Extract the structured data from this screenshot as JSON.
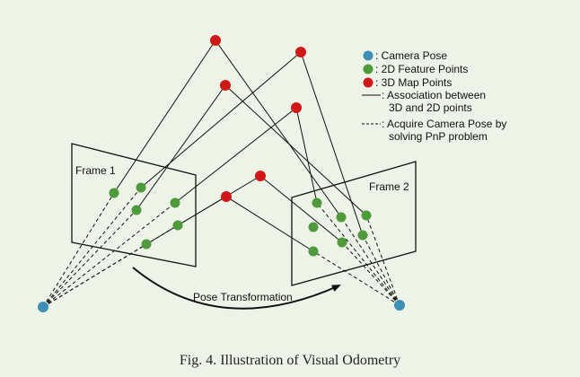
{
  "colors": {
    "camera": "#3d8fb5",
    "feature": "#4f9a3c",
    "map": "#d01818",
    "line": "#111111",
    "background": "#edf4e7"
  },
  "legend": {
    "items": [
      {
        "label": ": Camera Pose",
        "marker": "camera"
      },
      {
        "label": ": 2D Feature Points",
        "marker": "feature"
      },
      {
        "label": ": 3D Map Points",
        "marker": "map"
      },
      {
        "label": ": Association between",
        "label2": "3D and 2D points",
        "marker": "solid-line"
      },
      {
        "label": ": Acquire Camera Pose by",
        "label2": "solving PnP problem",
        "marker": "dashed-line"
      }
    ]
  },
  "frames": {
    "frame1": "Frame 1",
    "frame2": "Frame 2"
  },
  "arrow_label": "Pose Transformation",
  "caption": "Fig. 4.  Illustration of Visual Odometry"
}
